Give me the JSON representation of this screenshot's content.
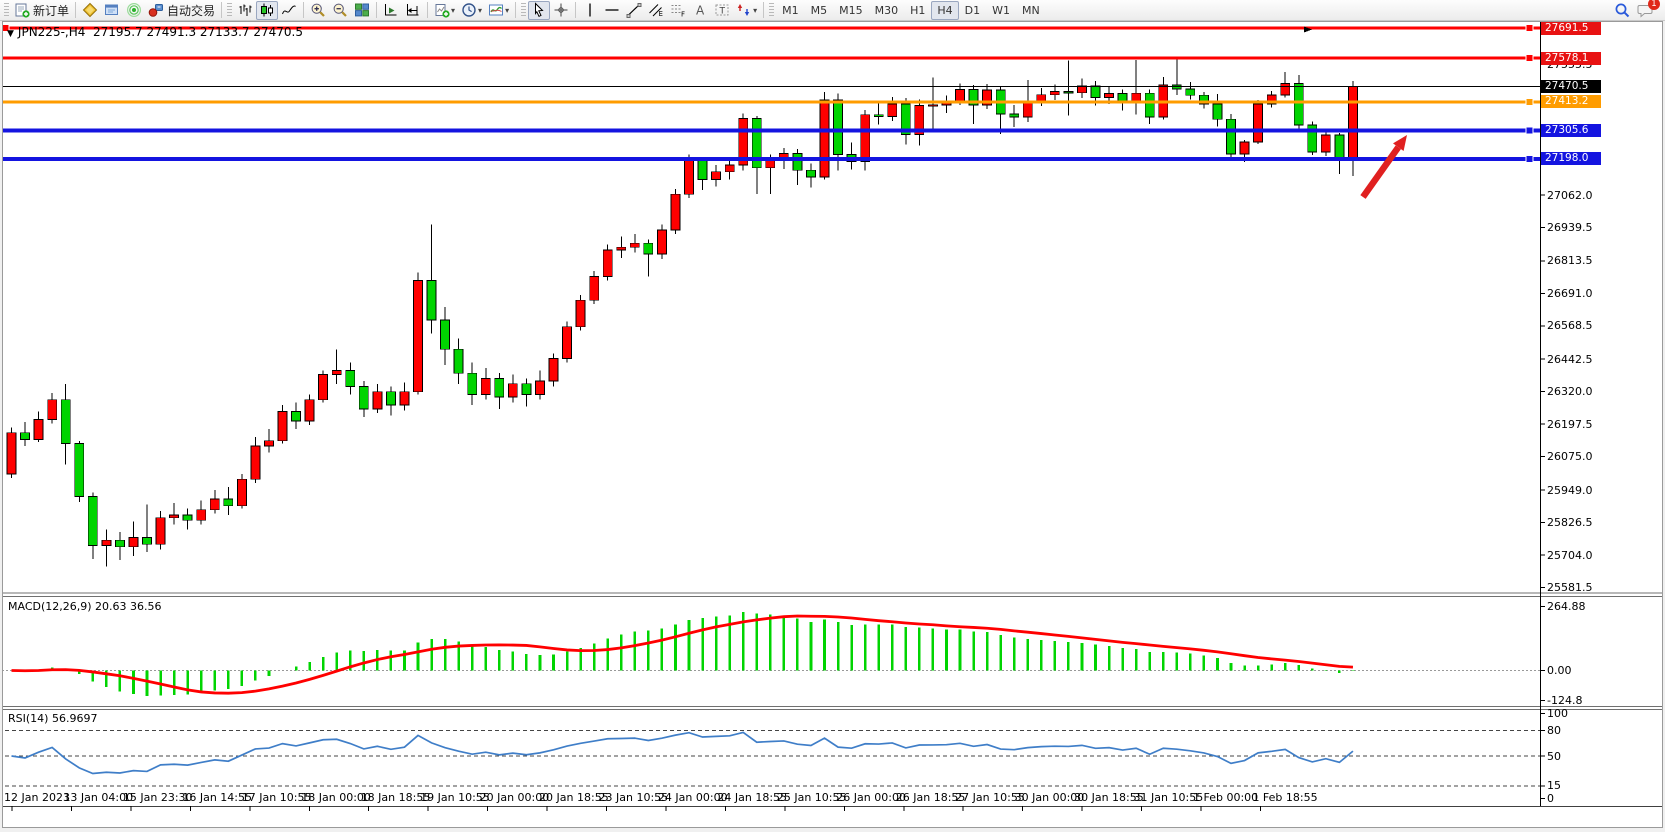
{
  "toolbar": {
    "new_order_label": "新订单",
    "autotrade_label": "自动交易",
    "timeframes": [
      "M1",
      "M5",
      "M15",
      "M30",
      "H1",
      "H4",
      "D1",
      "W1",
      "MN"
    ],
    "active_timeframe": "H4",
    "notification_count": "1",
    "icons": [
      "new-order",
      "market-watch",
      "profiles",
      "signal",
      "auto-trading",
      "bar-chart",
      "candlestick-chart",
      "line-chart",
      "zoom-in",
      "zoom-out",
      "tile-windows",
      "auto-scroll",
      "chart-shift",
      "new-chart",
      "periods",
      "indicators",
      "cursor",
      "crosshair",
      "vertical-line",
      "horizontal-line",
      "trendline",
      "equidistant-channel",
      "fibonacci",
      "text",
      "text-label",
      "arrows",
      "search",
      "notifications"
    ]
  },
  "chart": {
    "symbol_period": "JPN225-,H4",
    "ohlc_line": "27195.7 27491.3 27133.7 27470.5"
  },
  "price_axis": {
    "ticks": [
      {
        "label": "27555.5",
        "value": 27555.5
      },
      {
        "label": "27062.0",
        "value": 27062.0
      },
      {
        "label": "26939.5",
        "value": 26939.5
      },
      {
        "label": "26813.5",
        "value": 26813.5
      },
      {
        "label": "26691.0",
        "value": 26691.0
      },
      {
        "label": "26568.5",
        "value": 26568.5
      },
      {
        "label": "26442.5",
        "value": 26442.5
      },
      {
        "label": "26320.0",
        "value": 26320.0
      },
      {
        "label": "26197.5",
        "value": 26197.5
      },
      {
        "label": "26075.0",
        "value": 26075.0
      },
      {
        "label": "25949.0",
        "value": 25949.0
      },
      {
        "label": "25826.5",
        "value": 25826.5
      },
      {
        "label": "25704.0",
        "value": 25704.0
      },
      {
        "label": "25581.5",
        "value": 25581.5
      }
    ],
    "tags": [
      {
        "label": "27691.5",
        "value": 27691.5,
        "color": "#e81212"
      },
      {
        "label": "27578.1",
        "value": 27578.1,
        "color": "#e81212"
      },
      {
        "label": "27470.5",
        "value": 27470.5,
        "color": "#000000"
      },
      {
        "label": "27413.2",
        "value": 27413.2,
        "color": "#ff9c00"
      },
      {
        "label": "27305.6",
        "value": 27305.6,
        "color": "#1414e0"
      },
      {
        "label": "27198.0",
        "value": 27198.0,
        "color": "#1414e0"
      }
    ]
  },
  "hlines": [
    {
      "value": 27691.5,
      "color": "#ff0000",
      "width": 3,
      "handle": true,
      "left_handle": true
    },
    {
      "value": 27578.1,
      "color": "#ff0000",
      "width": 3,
      "handle": true
    },
    {
      "value": 27470.5,
      "color": "#000000",
      "width": 1
    },
    {
      "value": 27413.2,
      "color": "#ff9c00",
      "width": 3,
      "handle": true
    },
    {
      "value": 27305.6,
      "color": "#1414e0",
      "width": 4,
      "handle": true
    },
    {
      "value": 27198.0,
      "color": "#1414e0",
      "width": 4,
      "handle": true
    }
  ],
  "chart_data": {
    "type": "candlestick",
    "symbol": "JPN225-",
    "period": "H4",
    "current_bar": {
      "open": 27195.7,
      "high": 27491.3,
      "low": 27133.7,
      "close": 27470.5
    },
    "bull_color": "#ff0000",
    "bear_color": "#00d400",
    "visible_price_range": [
      25530,
      27700
    ],
    "horizontal_levels": [
      27691.5,
      27578.1,
      27413.2,
      27305.6,
      27198.0
    ],
    "indicators": [
      {
        "name": "MACD",
        "params": [
          12,
          26,
          9
        ],
        "current_values": [
          20.63,
          36.56
        ]
      },
      {
        "name": "RSI",
        "params": [
          14
        ],
        "current_values": [
          56.9697
        ]
      }
    ],
    "time_labels": [
      "12 Jan 2023",
      "13 Jan 04:00",
      "15 Jan 23:30",
      "16 Jan 14:55",
      "17 Jan 10:55",
      "18 Jan 00:00",
      "18 Jan 18:55",
      "19 Jan 10:55",
      "20 Jan 00:00",
      "20 Jan 18:55",
      "23 Jan 10:55",
      "24 Jan 00:00",
      "24 Jan 18:55",
      "25 Jan 10:55",
      "26 Jan 00:00",
      "26 Jan 18:55",
      "27 Jan 10:55",
      "30 Jan 00:00",
      "30 Jan 18:55",
      "31 Jan 10:55",
      "1 Feb 00:00",
      "1 Feb 18:55"
    ],
    "candles": [
      [
        26010,
        26185,
        25995,
        26165
      ],
      [
        26165,
        26205,
        26115,
        26140
      ],
      [
        26140,
        26245,
        26130,
        26215
      ],
      [
        26215,
        26315,
        26200,
        26290
      ],
      [
        26290,
        26350,
        26045,
        26125
      ],
      [
        26125,
        26135,
        25905,
        25925
      ],
      [
        25925,
        25940,
        25690,
        25740
      ],
      [
        25740,
        25800,
        25660,
        25760
      ],
      [
        25760,
        25790,
        25685,
        25735
      ],
      [
        25735,
        25830,
        25700,
        25770
      ],
      [
        25770,
        25895,
        25715,
        25745
      ],
      [
        25745,
        25870,
        25725,
        25845
      ],
      [
        25845,
        25900,
        25820,
        25855
      ],
      [
        25855,
        25880,
        25800,
        25835
      ],
      [
        25835,
        25910,
        25820,
        25875
      ],
      [
        25875,
        25950,
        25860,
        25915
      ],
      [
        25915,
        25960,
        25855,
        25890
      ],
      [
        25890,
        26010,
        25880,
        25990
      ],
      [
        25990,
        26150,
        25975,
        26115
      ],
      [
        26115,
        26180,
        26090,
        26135
      ],
      [
        26135,
        26270,
        26125,
        26245
      ],
      [
        26245,
        26280,
        26180,
        26210
      ],
      [
        26210,
        26310,
        26195,
        26290
      ],
      [
        26290,
        26400,
        26280,
        26385
      ],
      [
        26385,
        26480,
        26350,
        26400
      ],
      [
        26400,
        26430,
        26310,
        26340
      ],
      [
        26340,
        26360,
        26225,
        26255
      ],
      [
        26255,
        26350,
        26240,
        26320
      ],
      [
        26320,
        26340,
        26230,
        26270
      ],
      [
        26270,
        26355,
        26250,
        26320
      ],
      [
        26320,
        26770,
        26310,
        26740
      ],
      [
        26740,
        26950,
        26540,
        26590
      ],
      [
        26590,
        26640,
        26420,
        26480
      ],
      [
        26480,
        26520,
        26350,
        26390
      ],
      [
        26390,
        26430,
        26270,
        26310
      ],
      [
        26310,
        26410,
        26290,
        26370
      ],
      [
        26370,
        26390,
        26255,
        26300
      ],
      [
        26300,
        26385,
        26280,
        26350
      ],
      [
        26350,
        26370,
        26265,
        26310
      ],
      [
        26310,
        26400,
        26290,
        26360
      ],
      [
        26360,
        26465,
        26340,
        26445
      ],
      [
        26445,
        26585,
        26430,
        26565
      ],
      [
        26565,
        26685,
        26550,
        26665
      ],
      [
        26665,
        26775,
        26650,
        26755
      ],
      [
        26755,
        26875,
        26740,
        26855
      ],
      [
        26855,
        26905,
        26825,
        26865
      ],
      [
        26865,
        26915,
        26845,
        26880
      ],
      [
        26880,
        26895,
        26755,
        26840
      ],
      [
        26840,
        26950,
        26820,
        26930
      ],
      [
        26930,
        27085,
        26915,
        27065
      ],
      [
        27065,
        27215,
        27050,
        27195
      ],
      [
        27195,
        27200,
        27080,
        27120
      ],
      [
        27120,
        27175,
        27095,
        27150
      ],
      [
        27150,
        27200,
        27120,
        27175
      ],
      [
        27175,
        27370,
        27155,
        27350
      ],
      [
        27350,
        27360,
        27065,
        27165
      ],
      [
        27165,
        27215,
        27065,
        27195
      ],
      [
        27195,
        27240,
        27160,
        27218
      ],
      [
        27218,
        27235,
        27100,
        27155
      ],
      [
        27155,
        27180,
        27090,
        27130
      ],
      [
        27130,
        27450,
        27120,
        27420
      ],
      [
        27420,
        27445,
        27155,
        27215
      ],
      [
        27215,
        27260,
        27158,
        27188
      ],
      [
        27188,
        27382,
        27155,
        27365
      ],
      [
        27365,
        27408,
        27328,
        27358
      ],
      [
        27358,
        27432,
        27342,
        27405
      ],
      [
        27405,
        27428,
        27252,
        27290
      ],
      [
        27290,
        27422,
        27248,
        27400
      ],
      [
        27400,
        27505,
        27310,
        27402
      ],
      [
        27402,
        27438,
        27372,
        27412
      ],
      [
        27412,
        27482,
        27402,
        27460
      ],
      [
        27460,
        27476,
        27330,
        27402
      ],
      [
        27402,
        27480,
        27386,
        27458
      ],
      [
        27458,
        27470,
        27292,
        27368
      ],
      [
        27368,
        27402,
        27318,
        27356
      ],
      [
        27356,
        27496,
        27338,
        27412
      ],
      [
        27412,
        27466,
        27398,
        27440
      ],
      [
        27440,
        27478,
        27420,
        27452
      ],
      [
        27452,
        27570,
        27362,
        27448
      ],
      [
        27448,
        27502,
        27428,
        27474
      ],
      [
        27474,
        27492,
        27400,
        27430
      ],
      [
        27430,
        27470,
        27405,
        27445
      ],
      [
        27445,
        27460,
        27380,
        27410
      ],
      [
        27410,
        27571,
        27366,
        27446
      ],
      [
        27446,
        27460,
        27330,
        27356
      ],
      [
        27356,
        27507,
        27346,
        27477
      ],
      [
        27477,
        27575,
        27440,
        27462
      ],
      [
        27462,
        27488,
        27422,
        27438
      ],
      [
        27438,
        27450,
        27388,
        27405
      ],
      [
        27405,
        27443,
        27320,
        27348
      ],
      [
        27348,
        27367,
        27205,
        27217
      ],
      [
        27217,
        27270,
        27186,
        27262
      ],
      [
        27262,
        27420,
        27254,
        27405
      ],
      [
        27405,
        27455,
        27392,
        27439
      ],
      [
        27439,
        27526,
        27430,
        27482
      ],
      [
        27482,
        27515,
        27310,
        27326
      ],
      [
        27326,
        27340,
        27213,
        27224
      ],
      [
        27224,
        27300,
        27210,
        27288
      ],
      [
        27288,
        27295,
        27141,
        27198
      ],
      [
        27195.7,
        27491.3,
        27133.7,
        27470.5
      ]
    ]
  },
  "macd": {
    "label": "MACD(12,26,9)",
    "values_text": "20.63 36.56",
    "axis": [
      "264.88",
      "0.00",
      "-124.8"
    ],
    "axis_values": [
      264.88,
      0,
      -124.8
    ],
    "histogram_color": "#00d400",
    "signal_color": "#ff0000"
  },
  "rsi": {
    "label": "RSI(14)",
    "value_text": "56.9697",
    "levels": [
      "100",
      "80",
      "50",
      "15",
      "0"
    ],
    "level_values": [
      100,
      80,
      50,
      15,
      0
    ],
    "dashed_levels": [
      80,
      50,
      15
    ],
    "line_color": "#3f7ec8"
  },
  "annotation": {
    "type": "arrow-up-right",
    "color": "#e02020"
  }
}
